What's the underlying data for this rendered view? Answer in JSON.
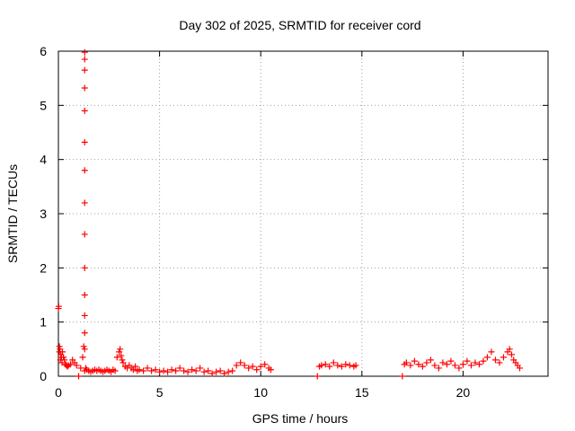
{
  "chart_data": {
    "type": "scatter",
    "title": "Day 302 of 2025, SRMTID for receiver cord",
    "xlabel": "GPS time / hours",
    "ylabel": "SRMTID / TECUs",
    "xlim": [
      0,
      24.2
    ],
    "ylim": [
      0,
      6
    ],
    "xticks": [
      0,
      5,
      10,
      15,
      20
    ],
    "yticks": [
      0,
      1,
      2,
      3,
      4,
      5,
      6
    ],
    "grid": true,
    "marker": "+",
    "series": [
      {
        "name": "SRMTID",
        "color": "#ff0000",
        "x": [
          0.0,
          0.02,
          0.05,
          0.05,
          0.08,
          0.1,
          0.12,
          0.15,
          0.18,
          0.2,
          0.25,
          0.3,
          0.35,
          0.4,
          0.45,
          0.5,
          0.6,
          0.7,
          0.8,
          0.9,
          1.0,
          1.1,
          1.2,
          1.25,
          1.3,
          1.3,
          1.3,
          1.3,
          1.3,
          1.3,
          1.3,
          1.3,
          1.3,
          1.3,
          1.3,
          1.3,
          1.3,
          1.3,
          1.3,
          1.35,
          1.4,
          1.5,
          1.6,
          1.7,
          1.8,
          1.9,
          2.0,
          2.1,
          2.2,
          2.3,
          2.4,
          2.5,
          2.6,
          2.7,
          2.8,
          2.9,
          3.0,
          3.05,
          3.1,
          3.15,
          3.2,
          3.3,
          3.4,
          3.5,
          3.6,
          3.7,
          3.8,
          3.9,
          4.0,
          4.2,
          4.4,
          4.6,
          4.8,
          5.0,
          5.2,
          5.4,
          5.6,
          5.8,
          6.0,
          6.2,
          6.4,
          6.6,
          6.8,
          7.0,
          7.2,
          7.4,
          7.6,
          7.8,
          8.0,
          8.2,
          8.4,
          8.6,
          8.8,
          9.0,
          9.2,
          9.4,
          9.6,
          9.8,
          10.0,
          10.2,
          10.4,
          10.5,
          12.8,
          12.9,
          13.0,
          13.2,
          13.4,
          13.6,
          13.8,
          14.0,
          14.2,
          14.4,
          14.6,
          14.7,
          17.0,
          17.1,
          17.2,
          17.4,
          17.6,
          17.8,
          18.0,
          18.2,
          18.4,
          18.6,
          18.8,
          19.0,
          19.2,
          19.4,
          19.6,
          19.8,
          20.0,
          20.2,
          20.4,
          20.6,
          20.8,
          21.0,
          21.2,
          21.4,
          21.6,
          21.8,
          22.0,
          22.2,
          22.3,
          22.4,
          22.5,
          22.6,
          22.7,
          22.8
        ],
        "y": [
          1.25,
          1.29,
          0.55,
          0.45,
          0.5,
          0.3,
          0.4,
          0.35,
          0.25,
          0.45,
          0.35,
          0.3,
          0.22,
          0.2,
          0.18,
          0.2,
          0.22,
          0.3,
          0.25,
          0.2,
          0.0,
          0.15,
          0.35,
          0.55,
          0.5,
          0.8,
          1.12,
          1.5,
          2.0,
          2.62,
          3.2,
          3.8,
          4.32,
          4.9,
          5.32,
          5.65,
          5.85,
          5.98,
          0.1,
          0.15,
          0.12,
          0.1,
          0.08,
          0.1,
          0.12,
          0.1,
          0.12,
          0.1,
          0.08,
          0.1,
          0.12,
          0.1,
          0.08,
          0.12,
          0.1,
          0.35,
          0.45,
          0.5,
          0.38,
          0.3,
          0.25,
          0.18,
          0.15,
          0.2,
          0.15,
          0.12,
          0.18,
          0.1,
          0.12,
          0.1,
          0.15,
          0.1,
          0.12,
          0.08,
          0.1,
          0.08,
          0.12,
          0.1,
          0.15,
          0.1,
          0.08,
          0.12,
          0.1,
          0.15,
          0.08,
          0.1,
          0.05,
          0.08,
          0.1,
          0.05,
          0.08,
          0.1,
          0.2,
          0.25,
          0.2,
          0.15,
          0.18,
          0.12,
          0.18,
          0.22,
          0.15,
          0.12,
          0.0,
          0.18,
          0.2,
          0.22,
          0.18,
          0.25,
          0.2,
          0.18,
          0.22,
          0.2,
          0.18,
          0.2,
          0.0,
          0.22,
          0.25,
          0.2,
          0.28,
          0.22,
          0.18,
          0.25,
          0.3,
          0.2,
          0.15,
          0.25,
          0.22,
          0.28,
          0.2,
          0.15,
          0.22,
          0.28,
          0.2,
          0.25,
          0.22,
          0.28,
          0.35,
          0.45,
          0.3,
          0.25,
          0.35,
          0.45,
          0.5,
          0.4,
          0.3,
          0.25,
          0.2,
          0.15
        ]
      }
    ]
  }
}
